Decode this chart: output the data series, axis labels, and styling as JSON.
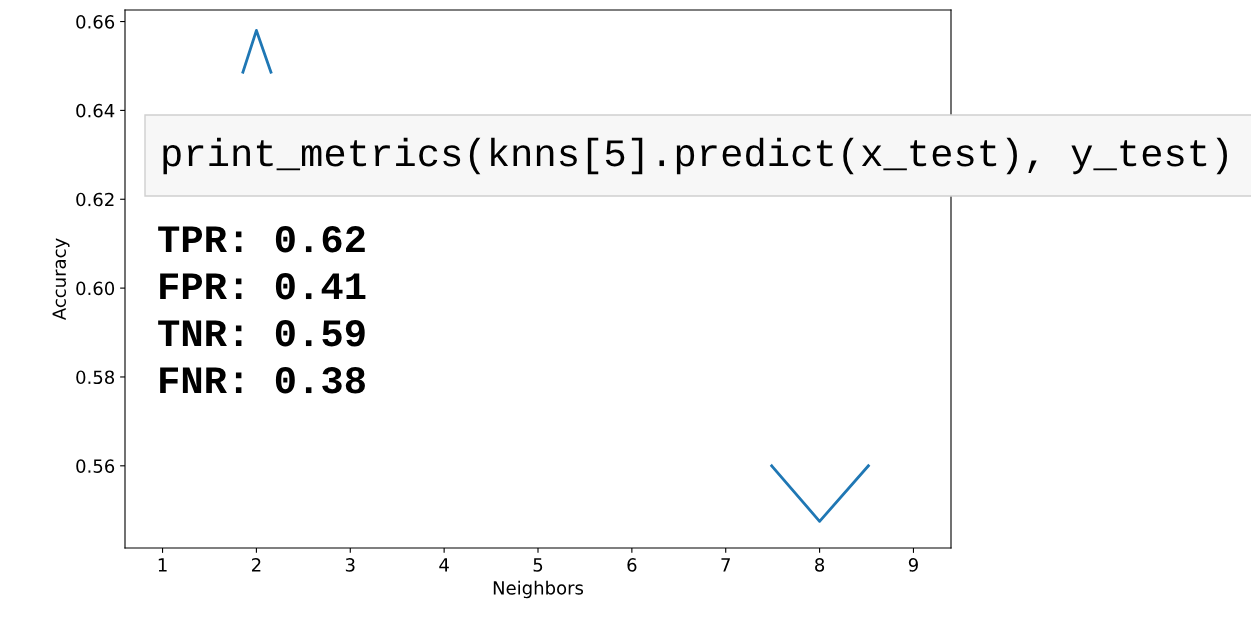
{
  "chart_data": {
    "type": "line",
    "xlabel": "Neighbors",
    "ylabel": "Accuracy",
    "x": [
      1.856,
      2,
      2.155,
      5,
      7.49,
      8,
      8.52
    ],
    "series": [
      {
        "color": "#1f77b4",
        "values": [
          0.6486,
          0.658,
          0.6486,
          null,
          0.56,
          0.5475,
          0.56
        ]
      }
    ],
    "xlim": [
      0.6,
      9.4
    ],
    "xticks": [
      1,
      2,
      3,
      4,
      5,
      6,
      7,
      8,
      9
    ],
    "ylim": [
      0.5415,
      0.6626
    ],
    "yticks": [
      {
        "value": 0.56,
        "label": "0.56"
      },
      {
        "value": 0.58,
        "label": "0.58"
      },
      {
        "value": 0.6,
        "label": "0.60"
      },
      {
        "value": 0.62,
        "label": "0.62"
      },
      {
        "value": 0.64,
        "label": "0.64"
      },
      {
        "value": 0.66,
        "label": "0.66"
      }
    ],
    "grid": false,
    "legend": false,
    "annotations": [
      "print_metrics(knns[5].predict(x_test), y_test)",
      "TPR: 0.62",
      "FPR: 0.41",
      "TNR: 0.59",
      "FNR: 0.38"
    ]
  }
}
